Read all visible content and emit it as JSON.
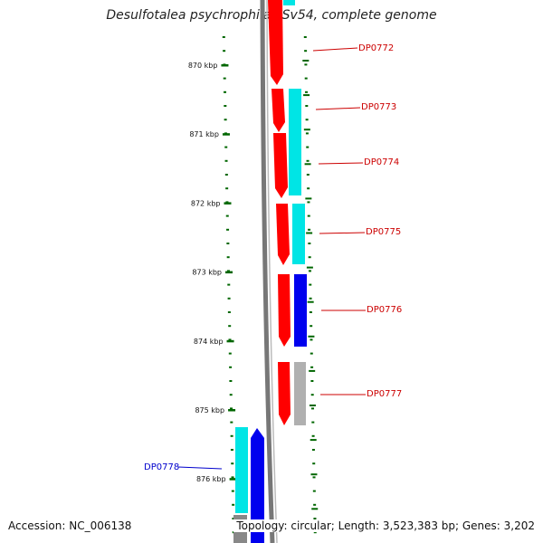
{
  "title": "Desulfotalea psychrophila LSv54, complete genome",
  "accession": "Accession: NC_006138",
  "summary": "Topology: circular; Length: 3,523,383 bp; Genes: 3,202",
  "ruler": {
    "ticks": [
      {
        "label": "870 kbp",
        "pos": 870
      },
      {
        "label": "871 kbp",
        "pos": 871
      },
      {
        "label": "872 kbp",
        "pos": 872
      },
      {
        "label": "873 kbp",
        "pos": 873
      },
      {
        "label": "874 kbp",
        "pos": 874
      },
      {
        "label": "875 kbp",
        "pos": 875
      },
      {
        "label": "876 kbp",
        "pos": 876
      }
    ]
  },
  "genes": [
    {
      "name": "DP0772",
      "strand": "reverse",
      "color": "#cc0000"
    },
    {
      "name": "DP0773",
      "strand": "reverse",
      "color": "#cc0000"
    },
    {
      "name": "DP0774",
      "strand": "reverse",
      "color": "#cc0000"
    },
    {
      "name": "DP0775",
      "strand": "reverse",
      "color": "#cc0000"
    },
    {
      "name": "DP0776",
      "strand": "reverse",
      "color": "#cc0000"
    },
    {
      "name": "DP0777",
      "strand": "reverse",
      "color": "#cc0000"
    },
    {
      "name": "DP0778",
      "strand": "forward",
      "color": "#0000cc"
    }
  ],
  "colors": {
    "cds": "#ff0000",
    "cog_cyan": "#00ffff",
    "cog_blue": "#0000ff",
    "cog_gray": "#aaaaaa",
    "ruler": "#006600",
    "backbone": "#777777"
  }
}
